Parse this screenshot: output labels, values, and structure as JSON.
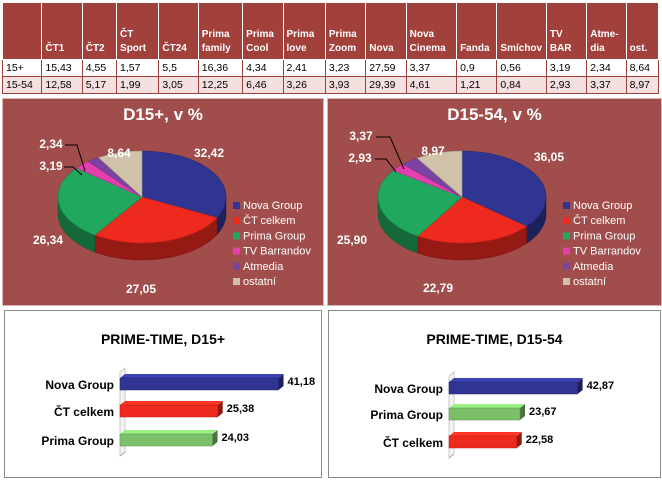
{
  "table": {
    "headers": [
      "",
      "ČT1",
      "ČT2",
      "ČT Sport",
      "ČT24",
      "Prima family",
      "Prima Cool",
      "Prima love",
      "Prima Zoom",
      "Nova",
      "Nova Cinema",
      "Fanda",
      "Smíchov",
      "TV BAR",
      "Atme-dia",
      "ost."
    ],
    "rows": [
      {
        "label": "15+",
        "values": [
          "15,43",
          "4,55",
          "1,57",
          "5,5",
          "16,36",
          "4,34",
          "2,41",
          "3,23",
          "27,59",
          "3,37",
          "0,9",
          "0,56",
          "3,19",
          "2,34",
          "8,64"
        ]
      },
      {
        "label": "15-54",
        "values": [
          "12,58",
          "5,17",
          "1,99",
          "3,05",
          "12,25",
          "6,46",
          "3,26",
          "3,93",
          "29,39",
          "4,61",
          "1,21",
          "0,84",
          "2,93",
          "3,37",
          "8,97"
        ]
      }
    ]
  },
  "chart_data": [
    {
      "type": "pie",
      "title": "D15+, v %",
      "categories": [
        "Nova Group",
        "ČT celkem",
        "Prima Group",
        "TV Barrandov",
        "Atmedia",
        "ostatní"
      ],
      "values": [
        32.42,
        27.05,
        26.34,
        3.19,
        2.34,
        8.64
      ],
      "labels": [
        "32,42",
        "27,05",
        "26,34",
        "3,19",
        "2,34",
        "8,64"
      ],
      "legend_position": "right"
    },
    {
      "type": "pie",
      "title": "D15-54, v %",
      "categories": [
        "Nova Group",
        "ČT celkem",
        "Prima Group",
        "TV Barrandov",
        "Atmedia",
        "ostatní"
      ],
      "values": [
        36.05,
        22.79,
        25.9,
        2.93,
        3.37,
        8.97
      ],
      "labels": [
        "36,05",
        "22,79",
        "25,90",
        "2,93",
        "3,37",
        "8,97"
      ],
      "legend_position": "right"
    },
    {
      "type": "bar",
      "orientation": "horizontal",
      "title": "PRIME-TIME, D15+",
      "categories": [
        "Nova Group",
        "ČT celkem",
        "Prima Group"
      ],
      "values": [
        41.18,
        25.38,
        24.03
      ],
      "labels": [
        "41,18",
        "25,38",
        "24,03"
      ],
      "xlim": [
        0,
        45
      ]
    },
    {
      "type": "bar",
      "orientation": "horizontal",
      "title": "PRIME-TIME, D15-54",
      "categories": [
        "Nova Group",
        "Prima Group",
        "ČT celkem"
      ],
      "values": [
        42.87,
        23.67,
        22.58
      ],
      "labels": [
        "42,87",
        "23,67",
        "22,58"
      ],
      "xlim": [
        0,
        45
      ]
    }
  ],
  "colors": {
    "Nova Group": "#2f3590",
    "ČT celkem": "#ee2a1f",
    "Prima Group": "#20a85e",
    "TV Barrandov": "#e33fb0",
    "Atmedia": "#7a45a0",
    "ostatní": "#cfc2a8",
    "prima_bar": "#7bbf6a",
    "panel_bg": "#a04d4c",
    "header_bg": "#a2403c"
  }
}
